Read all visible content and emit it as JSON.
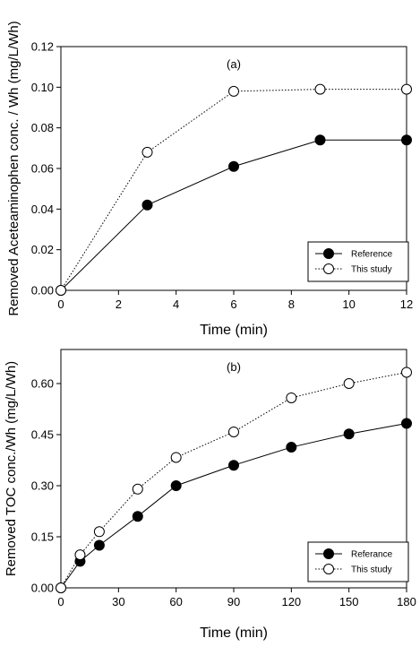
{
  "chart_data": [
    {
      "type": "line",
      "panel_label": "(a)",
      "xlabel": "Time (min)",
      "ylabel": "Removed Aceteaminophen conc. / Wh (mg/L/Wh)",
      "xlim": [
        0,
        12
      ],
      "ylim": [
        0,
        0.12
      ],
      "xticks": [
        0,
        2,
        4,
        6,
        8,
        10,
        12
      ],
      "xtick_labels": [
        "0",
        "2",
        "4",
        "6",
        "8",
        "10",
        "12"
      ],
      "yticks": [
        0,
        0.02,
        0.04,
        0.06,
        0.08,
        0.1,
        0.12
      ],
      "ytick_labels": [
        "0.00",
        "0.02",
        "0.04",
        "0.06",
        "0.08",
        "0.10",
        "0.12"
      ],
      "grid": false,
      "legend_position": "bottom-right",
      "series": [
        {
          "name": "Reference",
          "x": [
            0,
            3,
            6,
            9,
            12
          ],
          "y": [
            0.0,
            0.042,
            0.061,
            0.074,
            0.074
          ],
          "marker": "filled-circle",
          "line": "solid"
        },
        {
          "name": "This study",
          "x": [
            0,
            3,
            6,
            9,
            12
          ],
          "y": [
            0.0,
            0.068,
            0.098,
            0.099,
            0.099
          ],
          "marker": "open-circle",
          "line": "dotted"
        }
      ]
    },
    {
      "type": "line",
      "panel_label": "(b)",
      "xlabel": "Time (min)",
      "ylabel": "Removed TOC conc./Wh (mg/L/Wh)",
      "xlim": [
        0,
        180
      ],
      "ylim": [
        0,
        0.7
      ],
      "xticks": [
        0,
        30,
        60,
        90,
        120,
        150,
        180
      ],
      "xtick_labels": [
        "0",
        "30",
        "60",
        "90",
        "120",
        "150",
        "180"
      ],
      "yticks": [
        0,
        0.15,
        0.3,
        0.45,
        0.6
      ],
      "ytick_labels": [
        "0.00",
        "0.15",
        "0.30",
        "0.45",
        "0.60"
      ],
      "grid": false,
      "legend_position": "bottom-right",
      "series": [
        {
          "name": "Referance",
          "x": [
            0,
            10,
            20,
            40,
            60,
            90,
            120,
            150,
            180
          ],
          "y": [
            0.0,
            0.078,
            0.125,
            0.21,
            0.3,
            0.36,
            0.413,
            0.452,
            0.483
          ],
          "marker": "filled-circle",
          "line": "solid"
        },
        {
          "name": "This study",
          "x": [
            0,
            10,
            20,
            40,
            60,
            90,
            120,
            150,
            180
          ],
          "y": [
            0.0,
            0.097,
            0.165,
            0.29,
            0.383,
            0.458,
            0.558,
            0.6,
            0.633
          ],
          "marker": "open-circle",
          "line": "dotted"
        }
      ]
    }
  ]
}
